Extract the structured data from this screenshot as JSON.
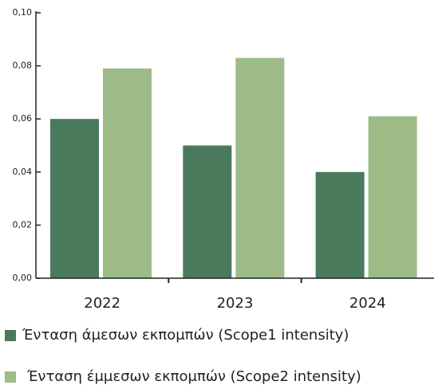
{
  "chart_data": {
    "type": "bar",
    "categories": [
      "2022",
      "2023",
      "2024"
    ],
    "series": [
      {
        "name": "Ένταση άμεσων εκπομπών (Scope1 intensity)",
        "color": "#4a7a5c",
        "values": [
          0.06,
          0.05,
          0.04
        ]
      },
      {
        "name": "Ένταση έμμεσων εκπομπών (Scope2 intensity)",
        "color": "#9dbb87",
        "values": [
          0.079,
          0.083,
          0.061
        ]
      }
    ],
    "ylim": [
      0,
      0.1
    ],
    "yticks": [
      {
        "value": 0,
        "label": "0,00"
      },
      {
        "value": 0.02,
        "label": "0,02"
      },
      {
        "value": 0.04,
        "label": "0,04"
      },
      {
        "value": 0.06,
        "label": "0,06"
      },
      {
        "value": 0.08,
        "label": "0,08"
      },
      {
        "value": 0.1,
        "label": "0,10"
      }
    ],
    "legend": "bottom"
  }
}
